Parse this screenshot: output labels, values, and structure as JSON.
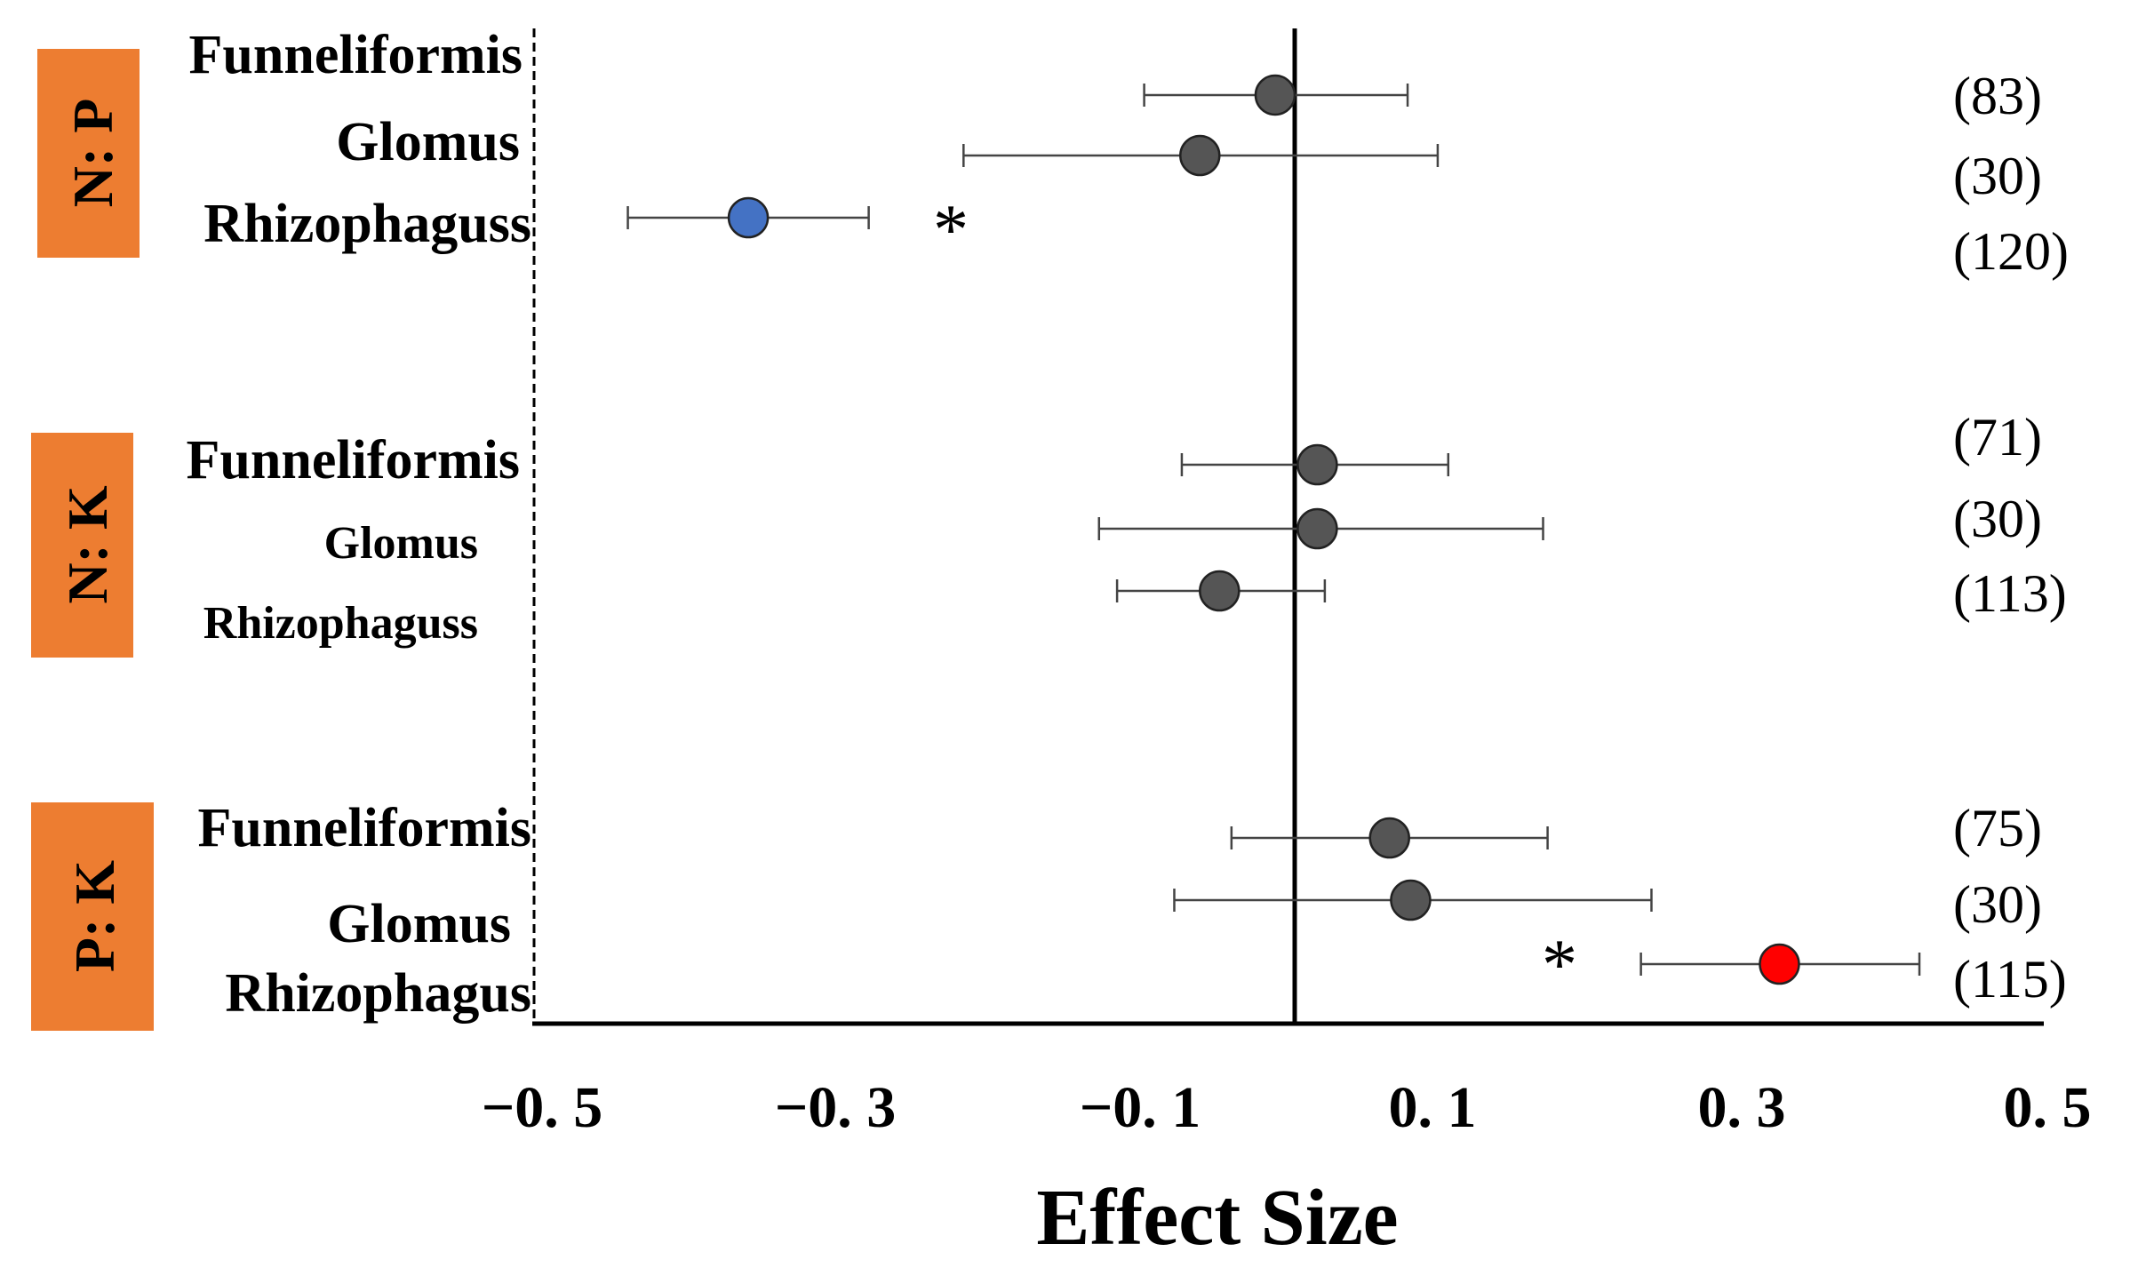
{
  "chart_data": {
    "type": "forest",
    "xlabel": "Effect Size",
    "xlim": [
      -0.5,
      0.5
    ],
    "x_ticks": [
      -0.5,
      -0.3,
      -0.1,
      0.1,
      0.3,
      0.5
    ],
    "x_tick_labels": [
      "−0. 5",
      "−0. 3",
      "−0. 1",
      "0. 1",
      "0. 3",
      "0. 5"
    ],
    "reference_line": 0,
    "colors": {
      "point_default": "#555555",
      "point_negative_sig": "#4472C4",
      "point_positive_sig": "#FF0000",
      "group_box": "#ED7D31",
      "axis": "#000000"
    },
    "groups": [
      {
        "name": "N: P",
        "rows": [
          {
            "label": "Funneliformis",
            "estimate": -0.013,
            "ci_low": -0.1,
            "ci_high": 0.075,
            "n_label": "(83)",
            "sig": ""
          },
          {
            "label": "Glomus",
            "estimate": -0.063,
            "ci_low": -0.22,
            "ci_high": 0.095,
            "n_label": "(30)",
            "sig": ""
          },
          {
            "label": "Rhizophaguss",
            "estimate": -0.363,
            "ci_low": -0.443,
            "ci_high": -0.283,
            "n_label": "(120)",
            "sig": "*"
          }
        ]
      },
      {
        "name": "N: K",
        "rows": [
          {
            "label": "Funneliformis",
            "estimate": 0.015,
            "ci_low": -0.075,
            "ci_high": 0.102,
            "n_label": "(71)",
            "sig": ""
          },
          {
            "label": "Glomus",
            "estimate": 0.015,
            "ci_low": -0.13,
            "ci_high": 0.165,
            "n_label": "(30)",
            "sig": ""
          },
          {
            "label": "Rhizophaguss",
            "estimate": -0.05,
            "ci_low": -0.118,
            "ci_high": 0.02,
            "n_label": "(113)",
            "sig": ""
          }
        ]
      },
      {
        "name": "P: K",
        "rows": [
          {
            "label": "Funneliformis",
            "estimate": 0.063,
            "ci_low": -0.042,
            "ci_high": 0.168,
            "n_label": "(75)",
            "sig": ""
          },
          {
            "label": "Glomus",
            "estimate": 0.077,
            "ci_low": -0.08,
            "ci_high": 0.237,
            "n_label": "(30)",
            "sig": ""
          },
          {
            "label": "Rhizophagus",
            "estimate": 0.322,
            "ci_low": 0.23,
            "ci_high": 0.415,
            "n_label": "(115)",
            "sig": "*"
          }
        ]
      }
    ]
  }
}
